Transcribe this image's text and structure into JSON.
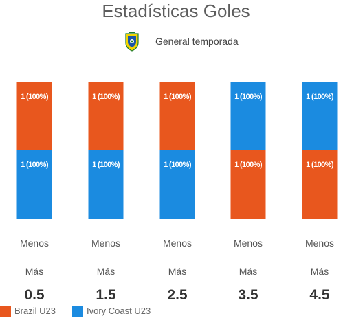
{
  "chart_data": {
    "type": "bar",
    "stacked": true,
    "percent": true,
    "title": "Estadísticas Goles",
    "subtitle": "General temporada",
    "categories": [
      "0.5",
      "1.5",
      "2.5",
      "3.5",
      "4.5"
    ],
    "category_row1": "Menos",
    "category_row2": "Más",
    "series": [
      {
        "name": "Brazil U23",
        "color": "#e8571e",
        "segments": [
          "Menos",
          "Menos",
          "Menos",
          "Más",
          "Más"
        ],
        "values": [
          1,
          1,
          1,
          1,
          1
        ],
        "labels": [
          "1 (100%)",
          "1 (100%)",
          "1 (100%)",
          "1 (100%)",
          "1 (100%)"
        ]
      },
      {
        "name": "Ivory Coast U23",
        "color": "#1b8be0",
        "segments": [
          "Más",
          "Más",
          "Más",
          "Menos",
          "Menos"
        ],
        "values": [
          1,
          1,
          1,
          1,
          1
        ],
        "labels": [
          "1 (100%)",
          "1 (100%)",
          "1 (100%)",
          "1 (100%)",
          "1 (100%)"
        ]
      }
    ],
    "legend": "bottom-left"
  },
  "crest_icon": "brazil-cbf-crest-icon"
}
